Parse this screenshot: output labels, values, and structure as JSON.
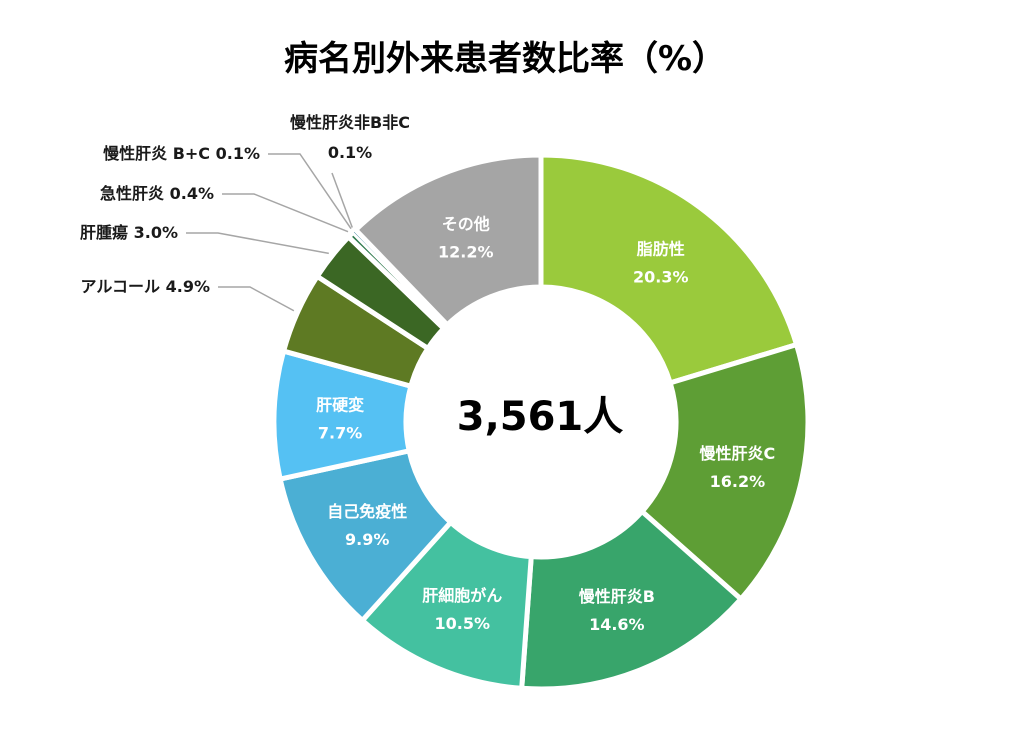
{
  "chart_data": {
    "type": "pie",
    "title": "病名別外来患者数比率（%）",
    "center_label": "3,561人",
    "categories": [
      "脂肪性",
      "慢性肝炎C",
      "慢性肝炎B",
      "肝細胞がん",
      "自己免疫性",
      "肝硬変",
      "アルコール",
      "肝腫瘍",
      "急性肝炎",
      "慢性肝炎 B+C",
      "慢性肝炎非B非C",
      "その他"
    ],
    "values": [
      20.3,
      16.2,
      14.6,
      10.5,
      9.9,
      7.7,
      4.9,
      3.0,
      0.4,
      0.1,
      0.1,
      12.2
    ],
    "value_labels": [
      "20.3%",
      "16.2%",
      "14.6%",
      "10.5%",
      "9.9%",
      "7.7%",
      "4.9%",
      "3.0%",
      "0.4%",
      "0.1%",
      "0.1%",
      "12.2%"
    ],
    "colors": [
      "#9ACA3C",
      "#5E9E35",
      "#38A56B",
      "#44C1A0",
      "#4BAFD4",
      "#55C1F3",
      "#5E7A23",
      "#3B6724",
      "#2F7A4E",
      "#1F6E8C",
      "#3A9C8A",
      "#A5A5A5"
    ],
    "label_placement": [
      "inside",
      "inside",
      "inside",
      "inside",
      "inside",
      "inside",
      "outside",
      "outside",
      "outside",
      "outside",
      "outside",
      "inside"
    ],
    "start_angle_deg": 0,
    "direction": "clockwise"
  }
}
